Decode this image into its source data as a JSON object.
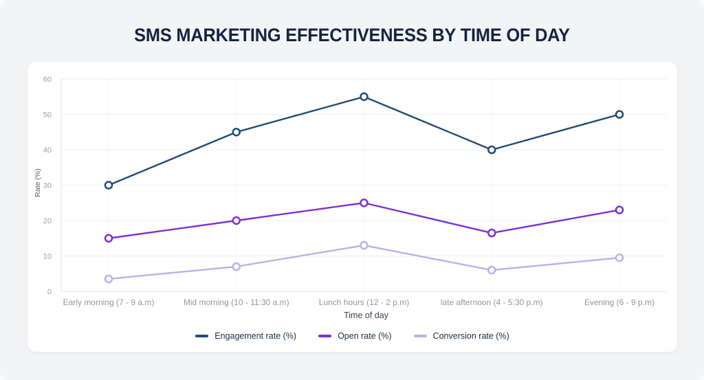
{
  "title": "SMS MARKETING EFFECTIVENESS BY TIME OF DAY",
  "colors": {
    "title_text": "#14233f",
    "card_background": "#f2f4f6",
    "panel_background": "#ffffff",
    "grid_horizontal": "#edeff2",
    "grid_vertical": "#f2f3f6",
    "axis_line": "#e3e5e9",
    "tick_label": "#9aa0a8",
    "x_tick_label": "#8f959e",
    "axis_title": "#3d424b",
    "legend_text": "#1e2a4a"
  },
  "chart_data": {
    "type": "line",
    "title": "SMS MARKETING EFFECTIVENESS BY TIME OF DAY",
    "xlabel": "Time of day",
    "ylabel": "Rate (%)",
    "ylim": [
      0,
      60
    ],
    "y_ticks": [
      0,
      10,
      20,
      30,
      40,
      50,
      60
    ],
    "grid": true,
    "legend_position": "bottom",
    "marker_style": "open-circle",
    "categories": [
      "Early morning (7 - 9 a.m)",
      "Mid morning (10 - 11:30 a.m)",
      "Lunch hours (12 - 2 p.m)",
      "late afternoon (4 - 5:30 p.m)",
      "Evening (6 - 9 p.m)"
    ],
    "series": [
      {
        "name": "Engagement rate (%)",
        "color": "#1f4a75",
        "values": [
          30,
          45,
          55,
          40,
          50
        ]
      },
      {
        "name": "Open rate (%)",
        "color": "#7c2fd6",
        "values": [
          15,
          20,
          25,
          16.5,
          23
        ]
      },
      {
        "name": "Conversion rate (%)",
        "color": "#b9b1ea",
        "values": [
          3.5,
          7,
          13,
          6,
          9.5
        ]
      }
    ]
  }
}
